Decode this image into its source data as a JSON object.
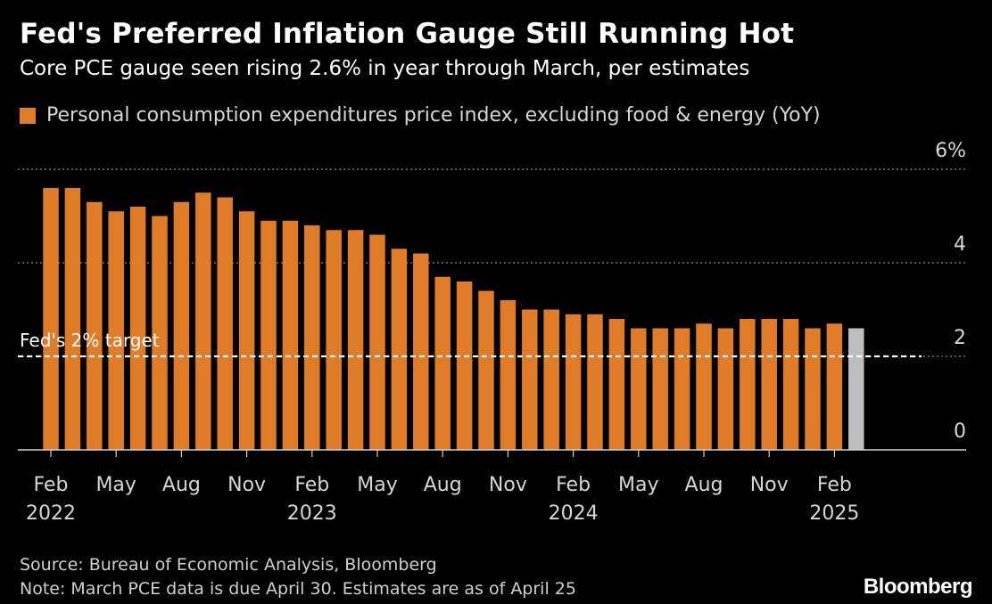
{
  "header": {
    "title": "Fed's Preferred Inflation Gauge Still Running Hot",
    "subtitle": "Core PCE gauge seen rising 2.6% in year through March, per estimates"
  },
  "footer": {
    "source": "Source: Bureau of Economic Analysis, Bloomberg",
    "note": "Note: March PCE data is due April 30. Estimates are as of April 25",
    "brand": "Bloomberg"
  },
  "colors": {
    "actual": "#e07b28",
    "estimate": "#bdbdbd",
    "background": "#000000",
    "grid": "#8a8a8a",
    "target_line": "#ffffff"
  },
  "chart_data": {
    "type": "bar",
    "legend": "Personal consumption expenditures price index, excluding food & energy (YoY)",
    "legend_position": "top-left",
    "ylim": [
      0,
      6
    ],
    "yticks": [
      0,
      2,
      4,
      6
    ],
    "ytick_labels": [
      "0",
      "2",
      "4",
      "6%"
    ],
    "grid": true,
    "y_axis_side": "right",
    "categories": [
      "Feb 2022",
      "Mar 2022",
      "Apr 2022",
      "May 2022",
      "Jun 2022",
      "Jul 2022",
      "Aug 2022",
      "Sep 2022",
      "Oct 2022",
      "Nov 2022",
      "Dec 2022",
      "Jan 2023",
      "Feb 2023",
      "Mar 2023",
      "Apr 2023",
      "May 2023",
      "Jun 2023",
      "Jul 2023",
      "Aug 2023",
      "Sep 2023",
      "Oct 2023",
      "Nov 2023",
      "Dec 2023",
      "Jan 2024",
      "Feb 2024",
      "Mar 2024",
      "Apr 2024",
      "May 2024",
      "Jun 2024",
      "Jul 2024",
      "Aug 2024",
      "Sep 2024",
      "Oct 2024",
      "Nov 2024",
      "Dec 2024",
      "Jan 2025",
      "Feb 2025",
      "Mar 2025"
    ],
    "series": [
      {
        "name": "Personal consumption expenditures price index, excluding food & energy (YoY)",
        "values": [
          5.6,
          5.6,
          5.3,
          5.1,
          5.2,
          5.0,
          5.3,
          5.5,
          5.4,
          5.1,
          4.9,
          4.9,
          4.8,
          4.7,
          4.7,
          4.6,
          4.3,
          4.2,
          3.7,
          3.6,
          3.4,
          3.2,
          3.0,
          3.0,
          2.9,
          2.9,
          2.8,
          2.6,
          2.6,
          2.6,
          2.7,
          2.6,
          2.8,
          2.8,
          2.8,
          2.6,
          2.7,
          2.6
        ],
        "estimate_flags": [
          false,
          false,
          false,
          false,
          false,
          false,
          false,
          false,
          false,
          false,
          false,
          false,
          false,
          false,
          false,
          false,
          false,
          false,
          false,
          false,
          false,
          false,
          false,
          false,
          false,
          false,
          false,
          false,
          false,
          false,
          false,
          false,
          false,
          false,
          false,
          false,
          false,
          true
        ]
      }
    ],
    "xtick_month_labels": [
      "Feb",
      "May",
      "Aug",
      "Nov",
      "Feb",
      "May",
      "Aug",
      "Nov",
      "Feb",
      "May",
      "Aug",
      "Nov",
      "Feb"
    ],
    "xtick_indices": [
      0,
      3,
      6,
      9,
      12,
      15,
      18,
      21,
      24,
      27,
      30,
      33,
      36
    ],
    "xtick_year_labels": [
      "2022",
      "",
      "",
      "",
      "2023",
      "",
      "",
      "",
      "2024",
      "",
      "",
      "",
      "2025"
    ],
    "reference_line": {
      "value": 2,
      "label": "Fed's 2% target",
      "style": "dashed"
    }
  }
}
